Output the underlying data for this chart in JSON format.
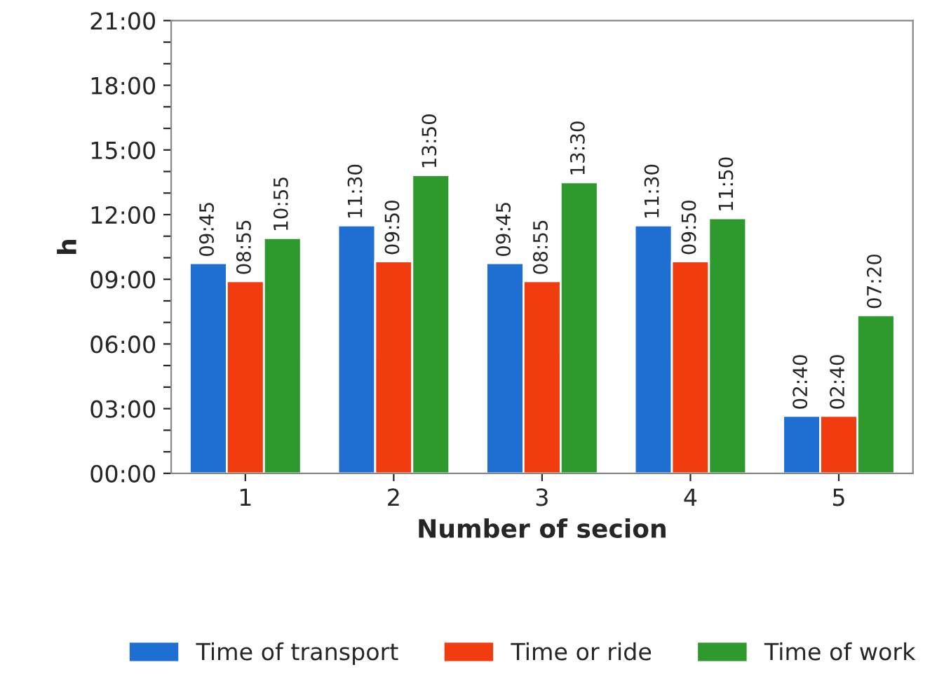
{
  "chart_data": {
    "type": "bar",
    "xlabel": "Number of secion",
    "ylabel": "h",
    "categories": [
      "1",
      "2",
      "3",
      "4",
      "5"
    ],
    "series": [
      {
        "name": "Time of transport",
        "color": "#1f6fd2",
        "values": [
          9.75,
          11.5,
          9.75,
          11.5,
          2.6667
        ],
        "value_labels": [
          "09:45",
          "11:30",
          "09:45",
          "11:30",
          "02:40"
        ]
      },
      {
        "name": "Time or ride",
        "color": "#f03c0f",
        "values": [
          8.9167,
          9.8333,
          8.9167,
          9.8333,
          2.6667
        ],
        "value_labels": [
          "08:55",
          "09:50",
          "08:55",
          "09:50",
          "02:40"
        ]
      },
      {
        "name": "Time of work",
        "color": "#2e9a2e",
        "values": [
          10.9167,
          13.8333,
          13.5,
          11.8333,
          7.3333
        ],
        "value_labels": [
          "10:55",
          "13:50",
          "13:30",
          "11:50",
          "07:20"
        ]
      }
    ],
    "ylim": [
      0,
      21
    ],
    "yticks": [
      {
        "value": 0,
        "label": "00:00"
      },
      {
        "value": 1,
        "label": null
      },
      {
        "value": 2,
        "label": null
      },
      {
        "value": 3,
        "label": "03:00"
      },
      {
        "value": 4,
        "label": null
      },
      {
        "value": 5,
        "label": null
      },
      {
        "value": 6,
        "label": "06:00"
      },
      {
        "value": 7,
        "label": null
      },
      {
        "value": 8,
        "label": null
      },
      {
        "value": 9,
        "label": "09:00"
      },
      {
        "value": 10,
        "label": null
      },
      {
        "value": 11,
        "label": null
      },
      {
        "value": 12,
        "label": "12:00"
      },
      {
        "value": 13,
        "label": null
      },
      {
        "value": 14,
        "label": null
      },
      {
        "value": 15,
        "label": "15:00"
      },
      {
        "value": 16,
        "label": null
      },
      {
        "value": 17,
        "label": null
      },
      {
        "value": 18,
        "label": "18:00"
      },
      {
        "value": 19,
        "label": null
      },
      {
        "value": 20,
        "label": null
      },
      {
        "value": 21,
        "label": "21:00"
      }
    ],
    "grid": false,
    "legend": "bottom"
  }
}
